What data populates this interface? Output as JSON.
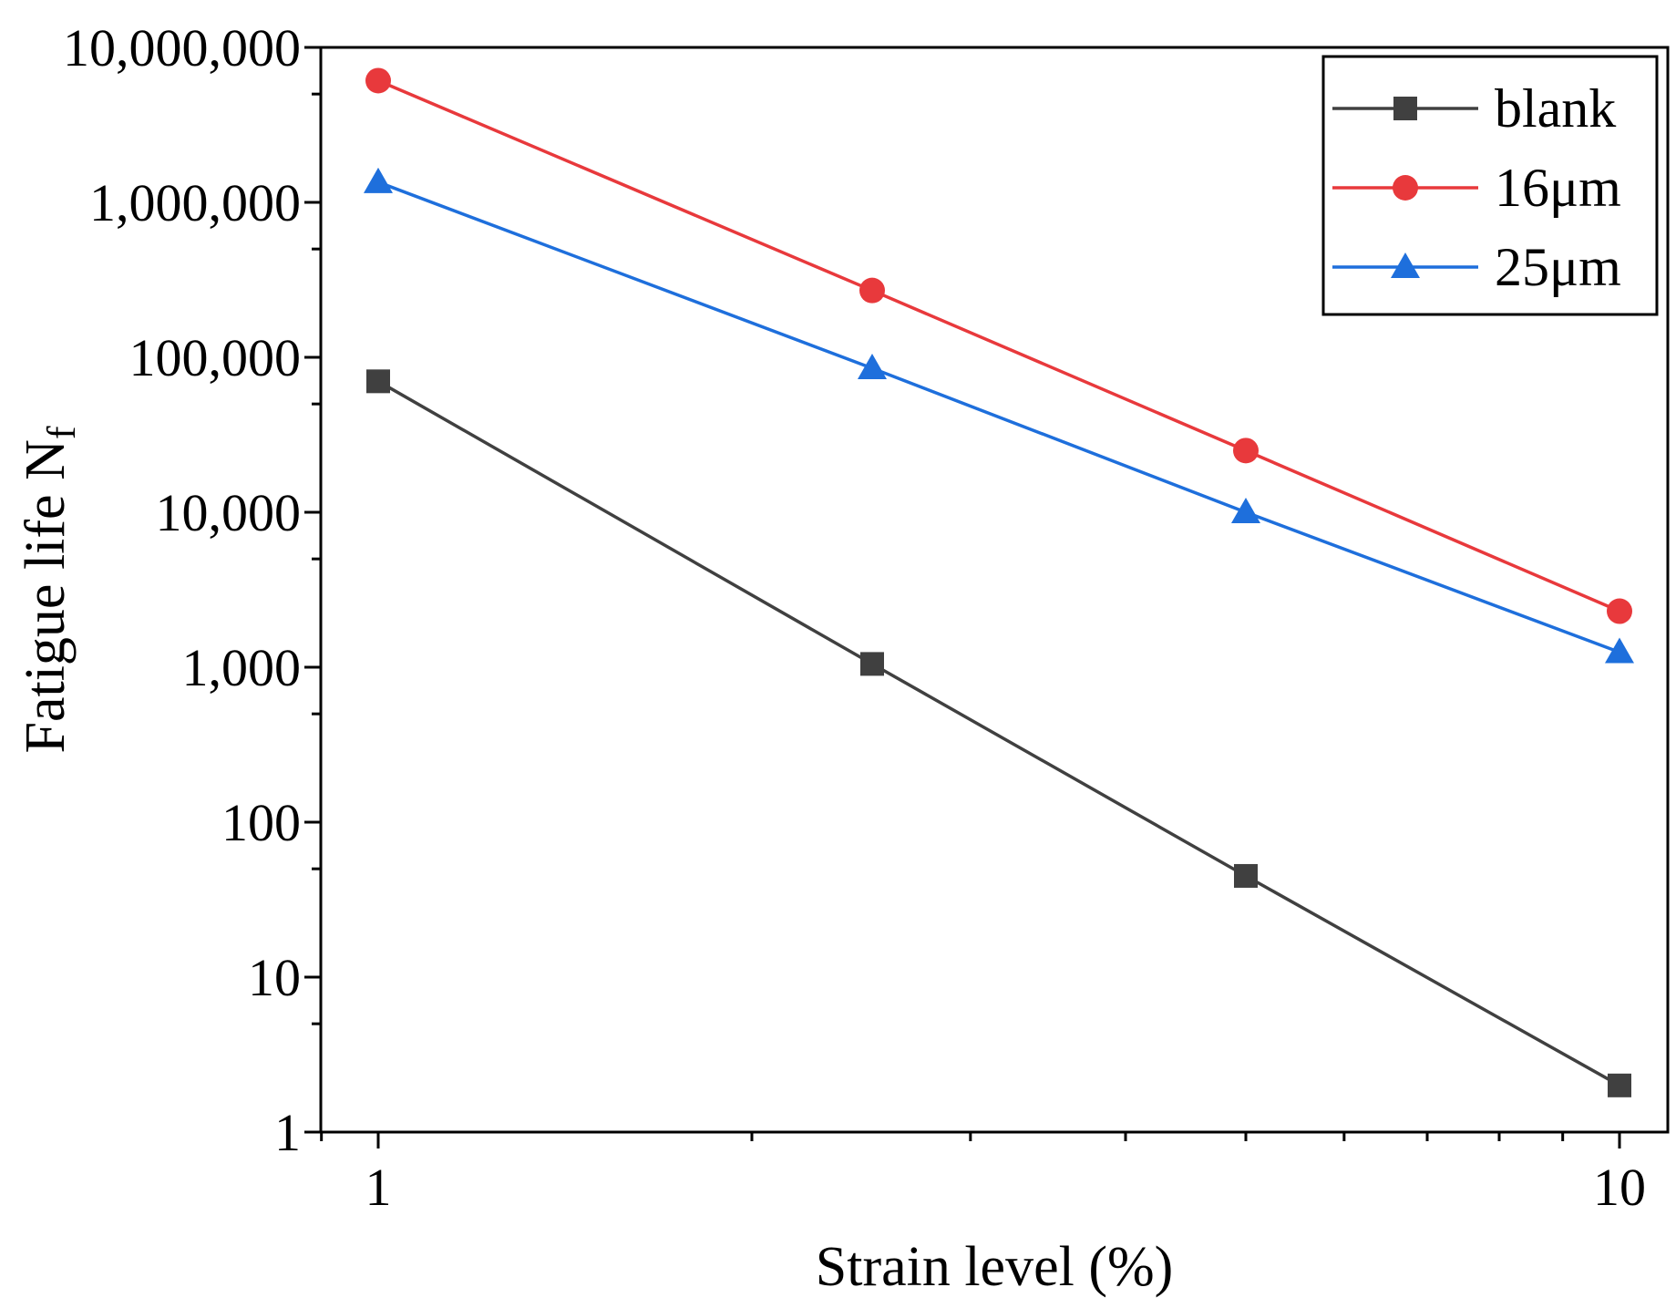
{
  "chart_data": {
    "type": "line",
    "title": "",
    "xlabel": "Strain level (%)",
    "ylabel": "Fatigue life N",
    "ylabel_subscript": "f",
    "x_scale": "log",
    "y_scale": "log",
    "xlim": [
      0.9,
      10.3
    ],
    "ylim": [
      1,
      10000000
    ],
    "grid": false,
    "legend_position": "top-right",
    "x_ticks": [
      {
        "value": 1,
        "label": "1"
      },
      {
        "value": 10,
        "label": "10"
      }
    ],
    "y_ticks": [
      {
        "value": 1,
        "label": "1"
      },
      {
        "value": 10,
        "label": "10"
      },
      {
        "value": 100,
        "label": "100"
      },
      {
        "value": 1000,
        "label": "1,000"
      },
      {
        "value": 10000,
        "label": "10,000"
      },
      {
        "value": 100000,
        "label": "100,000"
      },
      {
        "value": 1000000,
        "label": "1,000,000"
      },
      {
        "value": 10000000,
        "label": "10,000,000"
      }
    ],
    "x": [
      1,
      2.5,
      5,
      10
    ],
    "series": [
      {
        "name": "blank",
        "color": "#404040",
        "marker": "square",
        "values": [
          70000,
          1050,
          45,
          2
        ]
      },
      {
        "name": "16μm",
        "color": "#e8393c",
        "marker": "circle",
        "values": [
          6100000,
          270000,
          25000,
          2300
        ]
      },
      {
        "name": "25μm",
        "color": "#1e6fdc",
        "marker": "triangle",
        "values": [
          1350000,
          85000,
          10000,
          1250
        ]
      }
    ]
  }
}
